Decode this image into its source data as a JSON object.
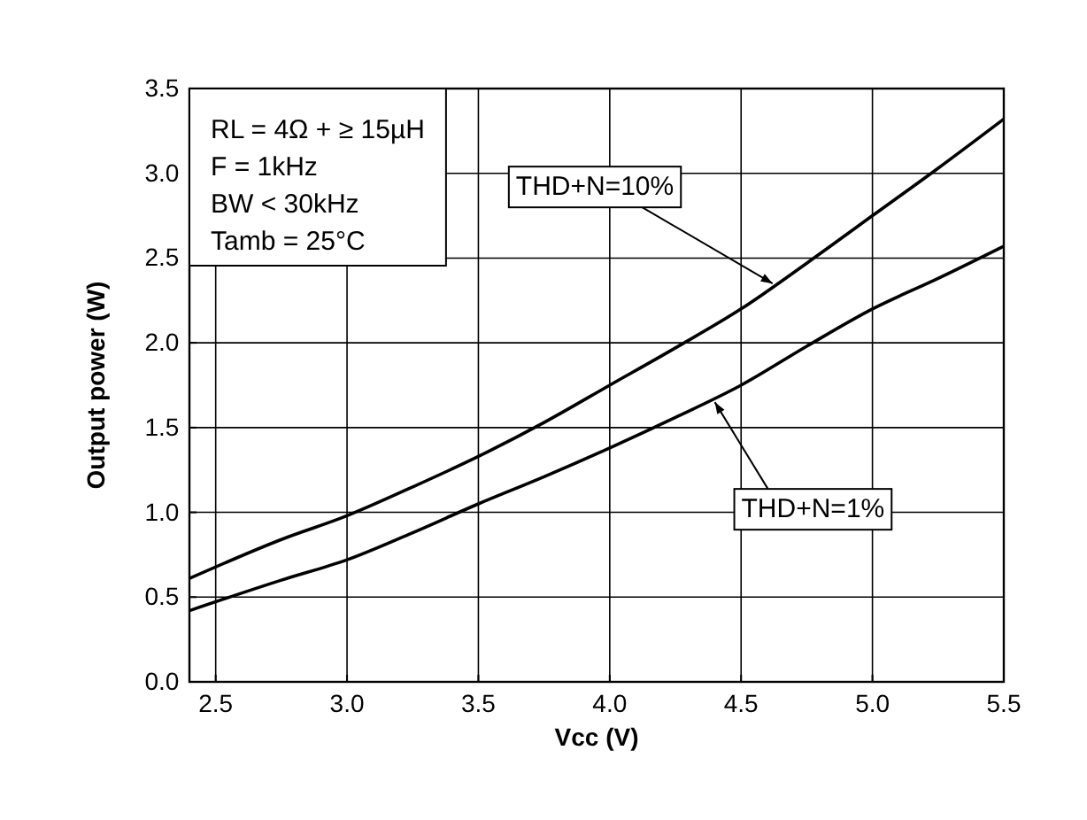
{
  "chart_data": {
    "type": "line",
    "xlabel": "Vcc (V)",
    "ylabel": "Output power (W)",
    "x": [
      2.4,
      2.75,
      3.0,
      3.25,
      3.5,
      3.75,
      4.0,
      4.25,
      4.5,
      4.75,
      5.0,
      5.25,
      5.5
    ],
    "series": [
      {
        "color": "#000000",
        "values": [
          0.61,
          0.84,
          0.98,
          1.15,
          1.33,
          1.53,
          1.75,
          1.97,
          2.2,
          2.47,
          2.75,
          3.03,
          3.32
        ]
      },
      {
        "color": "#000000",
        "values": [
          0.42,
          0.6,
          0.72,
          0.88,
          1.05,
          1.21,
          1.38,
          1.56,
          1.75,
          1.98,
          2.2,
          2.38,
          2.57
        ]
      }
    ],
    "xlim": [
      2.4,
      5.5
    ],
    "ylim": [
      0,
      3.5
    ],
    "xticks": [
      2.5,
      {
        "value": 3,
        "label": "3.0"
      },
      3.5,
      {
        "value": 4,
        "label": "4.0"
      },
      4.5,
      {
        "value": 5,
        "label": "5.0"
      },
      5.5
    ],
    "yticks": [
      {
        "value": 0,
        "label": "0.0"
      },
      0.5,
      {
        "value": 1,
        "label": "1.0"
      },
      1.5,
      {
        "value": 2,
        "label": "2.0"
      },
      2.5,
      {
        "value": 3,
        "label": "3.0"
      },
      3.5
    ],
    "grid": true,
    "marker": "none",
    "line_style": "solid",
    "annotations": [
      "RL = 4Ω + ≥ 15µH",
      "F = 1kHz",
      "BW < 30kHz",
      "Tamb = 25°C",
      {
        "text": "THD+N=10%",
        "x": 4.62,
        "y": 2.35
      },
      {
        "text": "THD+N=1%",
        "x": 4.4,
        "y": 1.65
      }
    ]
  }
}
